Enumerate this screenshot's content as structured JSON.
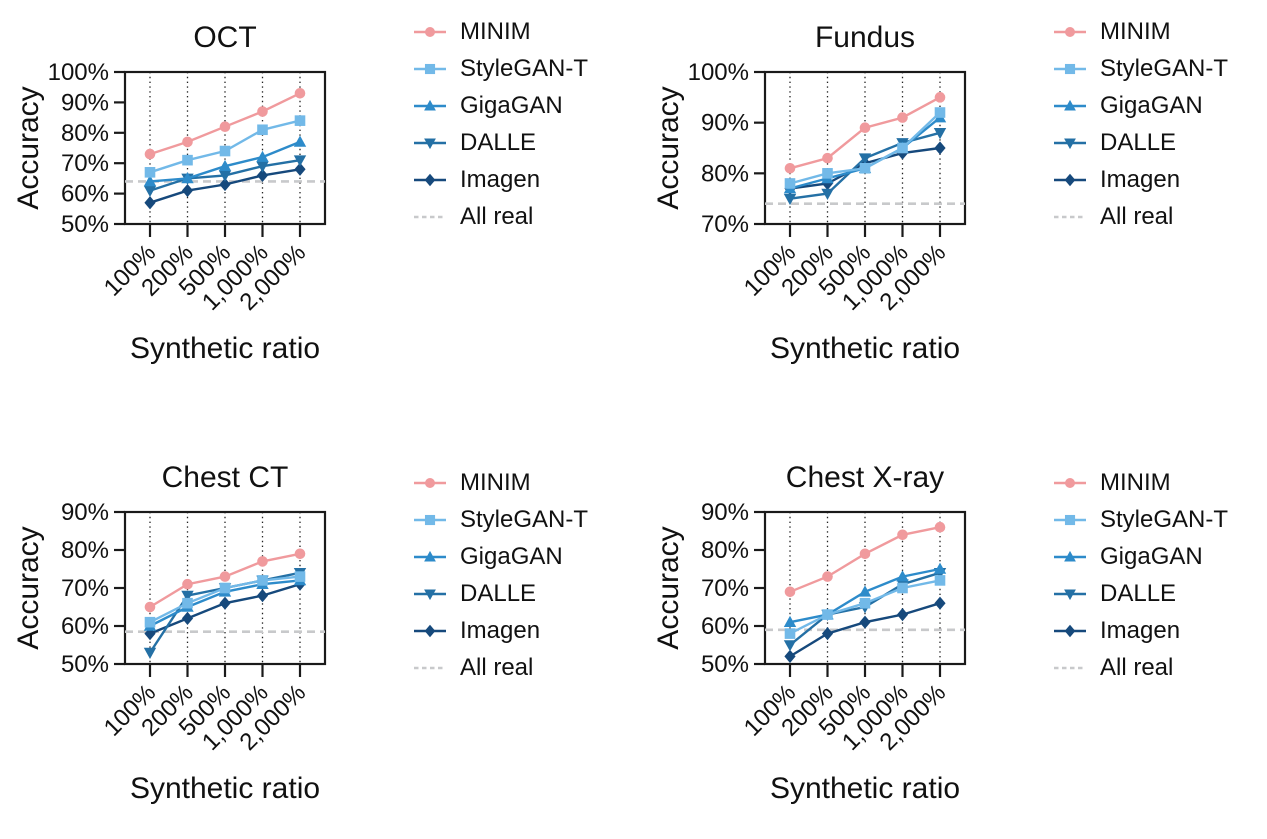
{
  "figure": {
    "background": "#ffffff",
    "text_color": "#111111",
    "gridline_style": "vertical-dotted-black",
    "xlabel": "Synthetic ratio",
    "ylabel": "Accuracy"
  },
  "legend": {
    "position": "right-of-each-panel",
    "items": [
      {
        "label": "MINIM",
        "marker": "circle",
        "color": "#f09a9d"
      },
      {
        "label": "StyleGAN-T",
        "marker": "square",
        "color": "#72b9e8"
      },
      {
        "label": "GigaGAN",
        "marker": "triangle-up",
        "color": "#2d8bca"
      },
      {
        "label": "DALLE",
        "marker": "triangle-down",
        "color": "#2470a5"
      },
      {
        "label": "Imagen",
        "marker": "diamond",
        "color": "#16497c"
      },
      {
        "label": "All real",
        "marker": "dashed-line",
        "color": "#c8c9cb"
      }
    ]
  },
  "chart_data": [
    {
      "id": "oct",
      "type": "line",
      "title": "OCT",
      "xlabel": "Synthetic ratio",
      "ylabel": "Accuracy",
      "categories": [
        "100%",
        "200%",
        "500%",
        "1,000%",
        "2,000%"
      ],
      "ylim": [
        50,
        100
      ],
      "yticks": [
        100,
        90,
        80,
        70,
        60,
        50
      ],
      "ytick_suffix": "%",
      "grid": "vertical-dotted",
      "series": [
        {
          "name": "MINIM",
          "color": "#f09a9d",
          "marker": "circle",
          "values": [
            73,
            77,
            82,
            87,
            93
          ]
        },
        {
          "name": "StyleGAN-T",
          "color": "#72b9e8",
          "marker": "square",
          "values": [
            67,
            71,
            74,
            81,
            84
          ]
        },
        {
          "name": "GigaGAN",
          "color": "#2d8bca",
          "marker": "triangle-up",
          "values": [
            64,
            65,
            69,
            72,
            77
          ]
        },
        {
          "name": "DALLE",
          "color": "#2470a5",
          "marker": "triangle-down",
          "values": [
            61,
            65,
            66,
            69,
            71
          ]
        },
        {
          "name": "Imagen",
          "color": "#16497c",
          "marker": "diamond",
          "values": [
            57,
            61,
            63,
            66,
            68
          ]
        }
      ],
      "baseline": {
        "name": "All real",
        "value": 64,
        "color": "#c8c9cb",
        "style": "dashed"
      }
    },
    {
      "id": "fundus",
      "type": "line",
      "title": "Fundus",
      "xlabel": "Synthetic ratio",
      "ylabel": "Accuracy",
      "categories": [
        "100%",
        "200%",
        "500%",
        "1,000%",
        "2,000%"
      ],
      "ylim": [
        70,
        100
      ],
      "yticks": [
        100,
        90,
        80,
        70
      ],
      "ytick_suffix": "%",
      "grid": "vertical-dotted",
      "series": [
        {
          "name": "MINIM",
          "color": "#f09a9d",
          "marker": "circle",
          "values": [
            81,
            83,
            89,
            91,
            95
          ]
        },
        {
          "name": "StyleGAN-T",
          "color": "#72b9e8",
          "marker": "square",
          "values": [
            78,
            80,
            81,
            85,
            92
          ]
        },
        {
          "name": "GigaGAN",
          "color": "#2d8bca",
          "marker": "triangle-up",
          "values": [
            77,
            79,
            81,
            85,
            91
          ]
        },
        {
          "name": "DALLE",
          "color": "#2470a5",
          "marker": "triangle-down",
          "values": [
            75,
            76,
            83,
            86,
            88
          ]
        },
        {
          "name": "Imagen",
          "color": "#16497c",
          "marker": "diamond",
          "values": [
            77,
            78,
            82,
            84,
            85
          ]
        }
      ],
      "baseline": {
        "name": "All real",
        "value": 74,
        "color": "#c8c9cb",
        "style": "dashed"
      }
    },
    {
      "id": "chest-ct",
      "type": "line",
      "title": "Chest CT",
      "xlabel": "Synthetic ratio",
      "ylabel": "Accuracy",
      "categories": [
        "100%",
        "200%",
        "500%",
        "1,000%",
        "2,000%"
      ],
      "ylim": [
        50,
        90
      ],
      "yticks": [
        90,
        80,
        70,
        60,
        50
      ],
      "ytick_suffix": "%",
      "grid": "vertical-dotted",
      "series": [
        {
          "name": "MINIM",
          "color": "#f09a9d",
          "marker": "circle",
          "values": [
            65,
            71,
            73,
            77,
            79
          ]
        },
        {
          "name": "StyleGAN-T",
          "color": "#72b9e8",
          "marker": "square",
          "values": [
            61,
            66,
            70,
            72,
            73
          ]
        },
        {
          "name": "GigaGAN",
          "color": "#2d8bca",
          "marker": "triangle-up",
          "values": [
            60,
            65,
            69,
            71,
            72
          ]
        },
        {
          "name": "DALLE",
          "color": "#2470a5",
          "marker": "triangle-down",
          "values": [
            53,
            68,
            70,
            72,
            74
          ]
        },
        {
          "name": "Imagen",
          "color": "#16497c",
          "marker": "diamond",
          "values": [
            58,
            62,
            66,
            68,
            71
          ]
        }
      ],
      "baseline": {
        "name": "All real",
        "value": 58.5,
        "color": "#c8c9cb",
        "style": "dashed"
      }
    },
    {
      "id": "chest-xray",
      "type": "line",
      "title": "Chest X-ray",
      "xlabel": "Synthetic ratio",
      "ylabel": "Accuracy",
      "categories": [
        "100%",
        "200%",
        "500%",
        "1,000%",
        "2,000%"
      ],
      "ylim": [
        50,
        90
      ],
      "yticks": [
        90,
        80,
        70,
        60,
        50
      ],
      "ytick_suffix": "%",
      "grid": "vertical-dotted",
      "series": [
        {
          "name": "MINIM",
          "color": "#f09a9d",
          "marker": "circle",
          "values": [
            69,
            73,
            79,
            84,
            86
          ]
        },
        {
          "name": "StyleGAN-T",
          "color": "#72b9e8",
          "marker": "square",
          "values": [
            58,
            63,
            66,
            70,
            72
          ]
        },
        {
          "name": "GigaGAN",
          "color": "#2d8bca",
          "marker": "triangle-up",
          "values": [
            61,
            63,
            69,
            73,
            75
          ]
        },
        {
          "name": "DALLE",
          "color": "#2470a5",
          "marker": "triangle-down",
          "values": [
            55,
            63,
            65,
            71,
            74
          ]
        },
        {
          "name": "Imagen",
          "color": "#16497c",
          "marker": "diamond",
          "values": [
            52,
            58,
            61,
            63,
            66
          ]
        }
      ],
      "baseline": {
        "name": "All real",
        "value": 59,
        "color": "#c8c9cb",
        "style": "dashed"
      }
    }
  ]
}
